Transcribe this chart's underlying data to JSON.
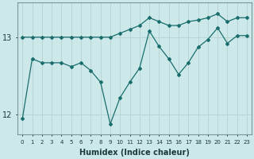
{
  "xlabel": "Humidex (Indice chaleur)",
  "x": [
    0,
    1,
    2,
    3,
    4,
    5,
    6,
    7,
    8,
    9,
    10,
    11,
    12,
    13,
    14,
    15,
    16,
    17,
    18,
    19,
    20,
    21,
    22,
    23
  ],
  "line1": [
    13.0,
    13.0,
    13.0,
    13.0,
    13.0,
    13.0,
    13.0,
    13.0,
    13.0,
    13.0,
    13.05,
    13.1,
    13.15,
    13.25,
    13.2,
    13.15,
    13.15,
    13.2,
    13.22,
    13.25,
    13.3,
    13.2,
    13.25,
    13.25
  ],
  "line2": [
    11.95,
    12.72,
    12.67,
    12.67,
    12.67,
    12.62,
    12.67,
    12.57,
    12.42,
    11.88,
    12.22,
    12.42,
    12.6,
    13.08,
    12.88,
    12.72,
    12.52,
    12.67,
    12.87,
    12.97,
    13.12,
    12.92,
    13.02,
    13.02
  ],
  "bg_color": "#cce8e8",
  "line_color": "#1a6e6e",
  "grid_color": "#b8d4d4",
  "ylim": [
    11.75,
    13.45
  ],
  "yticks": [
    12,
    13
  ],
  "xlim": [
    -0.5,
    23.5
  ]
}
